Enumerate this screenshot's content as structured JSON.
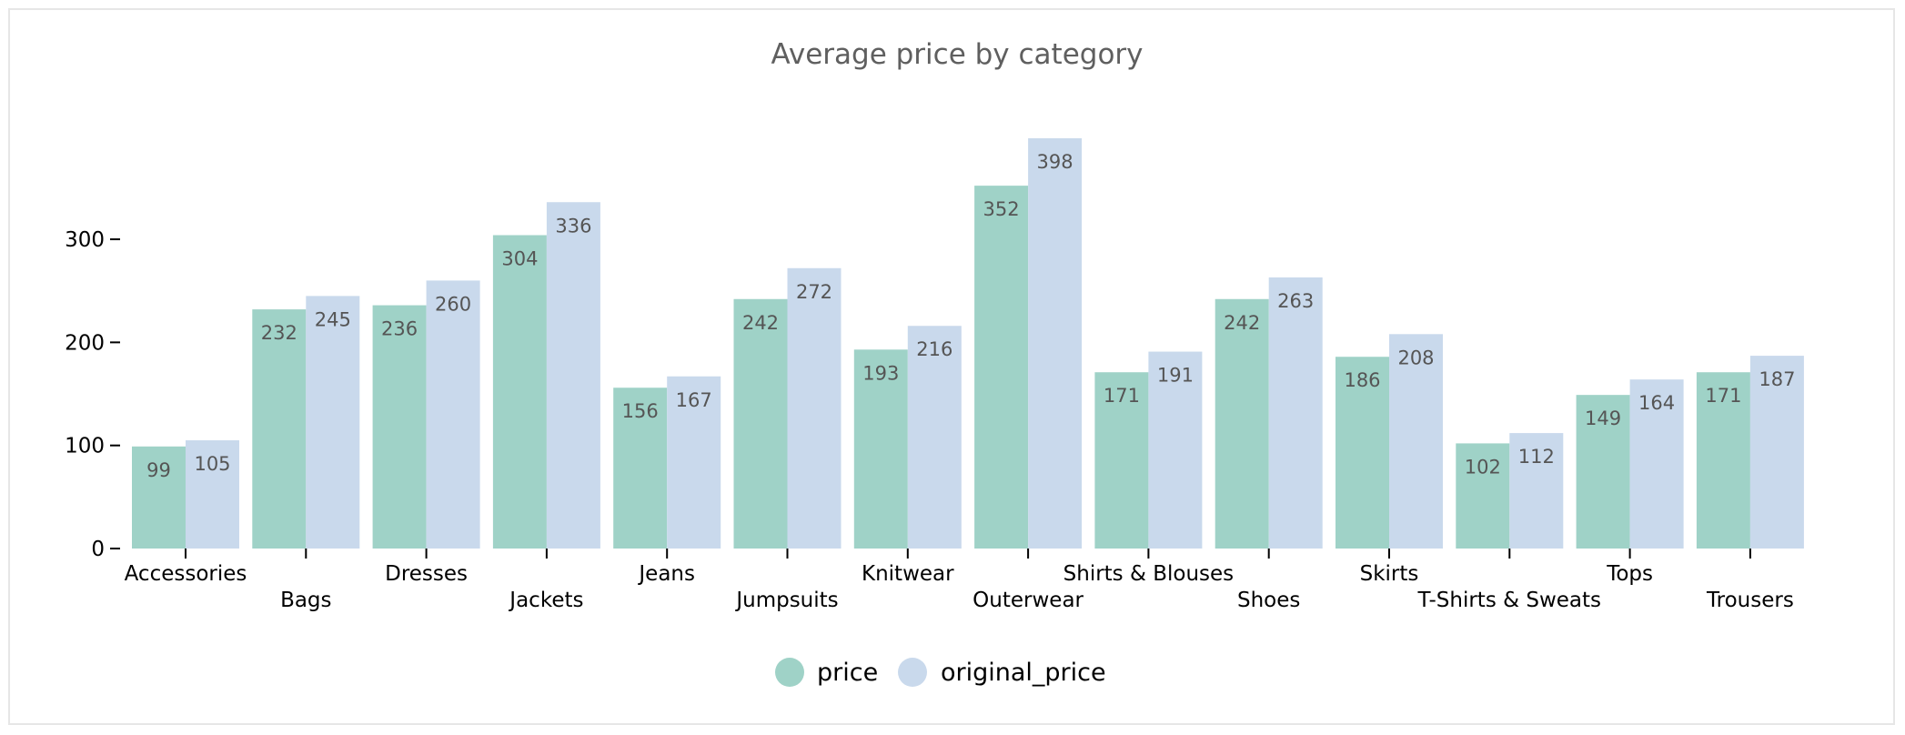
{
  "chart_data": {
    "type": "bar",
    "title": "Average price by category",
    "xlabel": "",
    "ylabel": "",
    "categories": [
      "Accessories",
      "Bags",
      "Dresses",
      "Jackets",
      "Jeans",
      "Jumpsuits",
      "Knitwear",
      "Outerwear",
      "Shirts & Blouses",
      "Shoes",
      "Skirts",
      "T-Shirts & Sweats",
      "Tops",
      "Trousers"
    ],
    "series": [
      {
        "name": "price",
        "color": "#9fd2c7",
        "values": [
          99,
          232,
          236,
          304,
          156,
          242,
          193,
          352,
          171,
          242,
          186,
          102,
          149,
          171
        ]
      },
      {
        "name": "original_price",
        "color": "#c9d9ec",
        "values": [
          105,
          245,
          260,
          336,
          167,
          272,
          216,
          398,
          191,
          263,
          208,
          112,
          164,
          187
        ]
      }
    ],
    "ylim": [
      0,
      398
    ],
    "yticks": [
      0,
      100,
      200,
      300
    ],
    "grid": false,
    "legend_position": "bottom-center",
    "data_labels": true
  }
}
